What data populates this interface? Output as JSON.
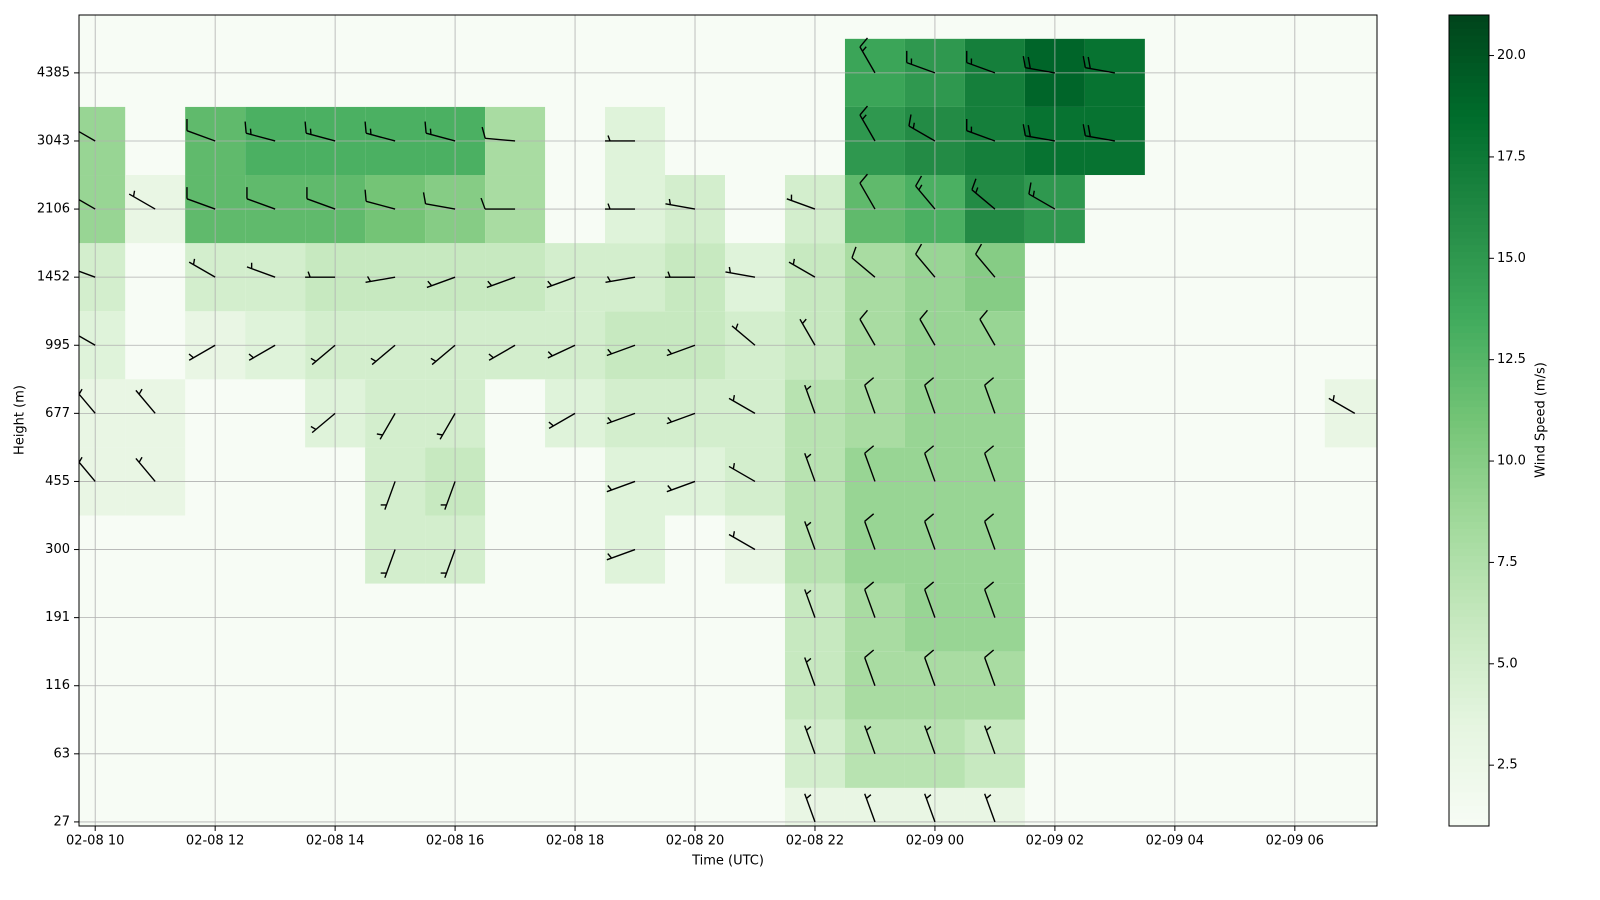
{
  "chart_data": {
    "type": "heatmap",
    "xlabel": "Time (UTC)",
    "ylabel": "Height (m)",
    "colorbar_label": "Wind Speed (m/s)",
    "x": [
      10,
      11,
      12,
      13,
      14,
      15,
      16,
      17,
      18,
      19,
      20,
      21,
      22,
      23,
      24,
      25,
      26,
      27,
      28,
      29,
      30,
      31
    ],
    "y": [
      0,
      1,
      2,
      3,
      4,
      5,
      6,
      7,
      8,
      9,
      10,
      11
    ],
    "xlim": [
      9.73,
      31.37
    ],
    "ylim": [
      -0.06,
      11.85
    ],
    "grid": true,
    "xticks": [
      {
        "value": 10,
        "label": "02-08 10"
      },
      {
        "value": 12,
        "label": "02-08 12"
      },
      {
        "value": 14,
        "label": "02-08 14"
      },
      {
        "value": 16,
        "label": "02-08 16"
      },
      {
        "value": 18,
        "label": "02-08 18"
      },
      {
        "value": 20,
        "label": "02-08 20"
      },
      {
        "value": 22,
        "label": "02-08 22"
      },
      {
        "value": 24,
        "label": "02-09 00"
      },
      {
        "value": 26,
        "label": "02-09 02"
      },
      {
        "value": 28,
        "label": "02-09 04"
      },
      {
        "value": 30,
        "label": "02-09 06"
      }
    ],
    "yticks": [
      {
        "value": 0,
        "label": "27"
      },
      {
        "value": 1,
        "label": "63"
      },
      {
        "value": 2,
        "label": "116"
      },
      {
        "value": 3,
        "label": "191"
      },
      {
        "value": 4,
        "label": "300"
      },
      {
        "value": 5,
        "label": "455"
      },
      {
        "value": 6,
        "label": "677"
      },
      {
        "value": 7,
        "label": "995"
      },
      {
        "value": 8,
        "label": "1452"
      },
      {
        "value": 9,
        "label": "2106"
      },
      {
        "value": 10,
        "label": "3043"
      },
      {
        "value": 11,
        "label": "4385"
      }
    ],
    "colormap": [
      "#f7fcf5",
      "#e5f5e0",
      "#c7e9c0",
      "#a1d99b",
      "#74c476",
      "#41ab5d",
      "#238b45",
      "#006d2c",
      "#00441b"
    ],
    "clim": [
      1,
      21
    ],
    "cticks": [
      {
        "value": 2.5,
        "label": "2.5"
      },
      {
        "value": 5,
        "label": "5.0"
      },
      {
        "value": 7.5,
        "label": "7.5"
      },
      {
        "value": 10,
        "label": "10.0"
      },
      {
        "value": 12.5,
        "label": "12.5"
      },
      {
        "value": 15,
        "label": "15.0"
      },
      {
        "value": 17.5,
        "label": "17.5"
      },
      {
        "value": 20,
        "label": "20.0"
      }
    ],
    "values": [
      [
        null,
        null,
        null,
        null,
        null,
        null,
        null,
        null,
        null,
        null,
        null,
        null,
        3,
        3,
        3,
        3,
        null,
        null,
        null,
        null,
        null,
        null
      ],
      [
        null,
        null,
        null,
        null,
        null,
        null,
        null,
        null,
        null,
        null,
        null,
        null,
        5,
        7,
        7,
        6,
        null,
        null,
        null,
        null,
        null,
        null
      ],
      [
        null,
        null,
        null,
        null,
        null,
        null,
        null,
        null,
        null,
        null,
        null,
        null,
        6,
        8,
        8,
        8,
        null,
        null,
        null,
        null,
        null,
        null
      ],
      [
        null,
        null,
        null,
        null,
        null,
        null,
        null,
        null,
        null,
        null,
        null,
        null,
        6,
        8,
        9,
        9,
        null,
        null,
        null,
        null,
        null,
        null
      ],
      [
        null,
        null,
        null,
        null,
        null,
        5,
        5,
        null,
        null,
        4,
        null,
        3,
        7,
        9,
        9,
        9,
        null,
        null,
        null,
        null,
        null,
        null
      ],
      [
        3,
        3,
        null,
        null,
        null,
        5,
        6,
        null,
        null,
        4,
        4,
        5,
        7,
        9,
        9,
        9,
        null,
        null,
        null,
        null,
        null,
        null
      ],
      [
        3,
        3,
        null,
        null,
        4,
        5,
        5,
        null,
        4,
        5,
        5,
        5,
        7,
        8,
        9,
        9,
        null,
        null,
        null,
        null,
        null,
        3
      ],
      [
        4,
        null,
        3,
        4,
        5,
        5,
        5,
        5,
        5,
        6,
        6,
        5,
        6,
        8,
        9,
        9,
        null,
        null,
        null,
        null,
        null,
        null
      ],
      [
        5,
        null,
        5,
        5,
        6,
        6,
        6,
        6,
        5,
        5,
        6,
        4,
        6,
        8,
        9,
        10,
        null,
        null,
        null,
        null,
        null,
        null
      ],
      [
        9,
        3,
        12,
        12,
        12,
        11,
        10,
        8,
        null,
        4,
        5,
        null,
        5,
        12,
        13,
        16,
        15,
        null,
        null,
        null,
        null,
        null
      ],
      [
        9,
        null,
        12,
        13,
        13,
        13,
        13,
        8,
        null,
        4,
        null,
        null,
        null,
        15,
        16,
        17,
        18,
        18,
        null,
        null,
        null,
        null
      ],
      [
        null,
        null,
        null,
        null,
        null,
        null,
        null,
        null,
        null,
        null,
        null,
        null,
        null,
        14,
        15,
        17,
        19,
        18,
        null,
        null,
        null,
        null
      ]
    ],
    "directions": [
      [
        null,
        null,
        null,
        null,
        null,
        null,
        null,
        null,
        null,
        null,
        null,
        null,
        340,
        340,
        340,
        340,
        null,
        null,
        null,
        null,
        null,
        null
      ],
      [
        null,
        null,
        null,
        null,
        null,
        null,
        null,
        null,
        null,
        null,
        null,
        null,
        340,
        340,
        340,
        340,
        null,
        null,
        null,
        null,
        null,
        null
      ],
      [
        null,
        null,
        null,
        null,
        null,
        null,
        null,
        null,
        null,
        null,
        null,
        null,
        340,
        340,
        340,
        340,
        null,
        null,
        null,
        null,
        null,
        null
      ],
      [
        null,
        null,
        null,
        null,
        null,
        null,
        null,
        null,
        null,
        null,
        null,
        null,
        340,
        340,
        340,
        340,
        null,
        null,
        null,
        null,
        null,
        null
      ],
      [
        null,
        null,
        null,
        null,
        null,
        200,
        200,
        null,
        null,
        250,
        null,
        300,
        340,
        340,
        340,
        340,
        null,
        null,
        null,
        null,
        null,
        null
      ],
      [
        320,
        320,
        null,
        null,
        null,
        200,
        200,
        null,
        null,
        250,
        250,
        300,
        340,
        340,
        340,
        340,
        null,
        null,
        null,
        null,
        null,
        null
      ],
      [
        320,
        320,
        null,
        null,
        230,
        210,
        210,
        null,
        240,
        250,
        250,
        300,
        340,
        340,
        340,
        340,
        null,
        null,
        null,
        null,
        null,
        300
      ],
      [
        300,
        null,
        240,
        240,
        230,
        230,
        230,
        240,
        245,
        250,
        250,
        310,
        330,
        330,
        330,
        330,
        null,
        null,
        null,
        null,
        null,
        null
      ],
      [
        290,
        null,
        300,
        290,
        270,
        260,
        250,
        250,
        250,
        260,
        270,
        280,
        300,
        310,
        320,
        320,
        null,
        null,
        null,
        null,
        null,
        null
      ],
      [
        300,
        300,
        290,
        290,
        290,
        285,
        280,
        270,
        null,
        270,
        280,
        null,
        290,
        330,
        320,
        310,
        300,
        null,
        null,
        null,
        null,
        null
      ],
      [
        300,
        null,
        290,
        285,
        285,
        285,
        285,
        275,
        null,
        270,
        null,
        null,
        null,
        330,
        300,
        290,
        280,
        280,
        null,
        null,
        null,
        null
      ],
      [
        null,
        null,
        null,
        null,
        null,
        null,
        null,
        null,
        null,
        null,
        null,
        null,
        null,
        330,
        290,
        290,
        280,
        280,
        null,
        null,
        null,
        null
      ]
    ]
  }
}
